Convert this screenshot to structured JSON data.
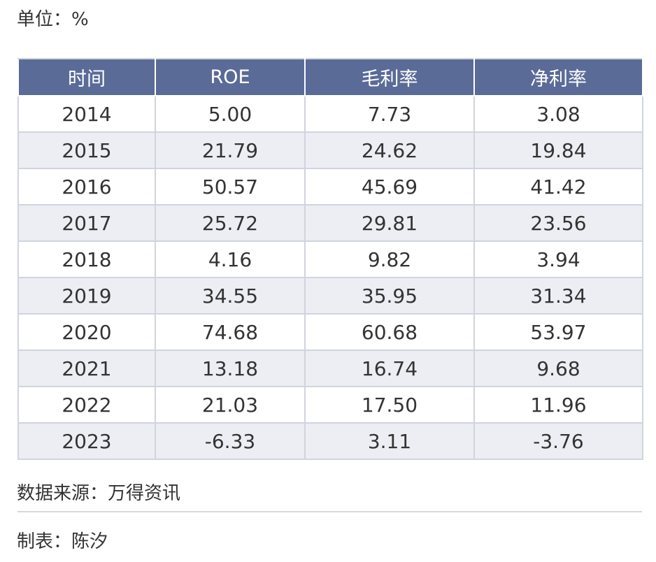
{
  "unit_label": "单位：%",
  "table": {
    "headers": [
      "时间",
      "ROE",
      "毛利率",
      "净利率"
    ],
    "rows": [
      [
        "2014",
        "5.00",
        "7.73",
        "3.08"
      ],
      [
        "2015",
        "21.79",
        "24.62",
        "19.84"
      ],
      [
        "2016",
        "50.57",
        "45.69",
        "41.42"
      ],
      [
        "2017",
        "25.72",
        "29.81",
        "23.56"
      ],
      [
        "2018",
        "4.16",
        "9.82",
        "3.94"
      ],
      [
        "2019",
        "34.55",
        "35.95",
        "31.34"
      ],
      [
        "2020",
        "74.68",
        "60.68",
        "53.97"
      ],
      [
        "2021",
        "13.18",
        "16.74",
        "9.68"
      ],
      [
        "2022",
        "21.03",
        "17.50",
        "11.96"
      ],
      [
        "2023",
        "-6.33",
        "3.11",
        "-3.76"
      ]
    ]
  },
  "source_line": "数据来源：万得资讯",
  "author_line": "制表：陈汐",
  "colors": {
    "header_bg": "#5a6b97",
    "stripe_bg": "#eceef3",
    "border": "#d0d4dd"
  }
}
